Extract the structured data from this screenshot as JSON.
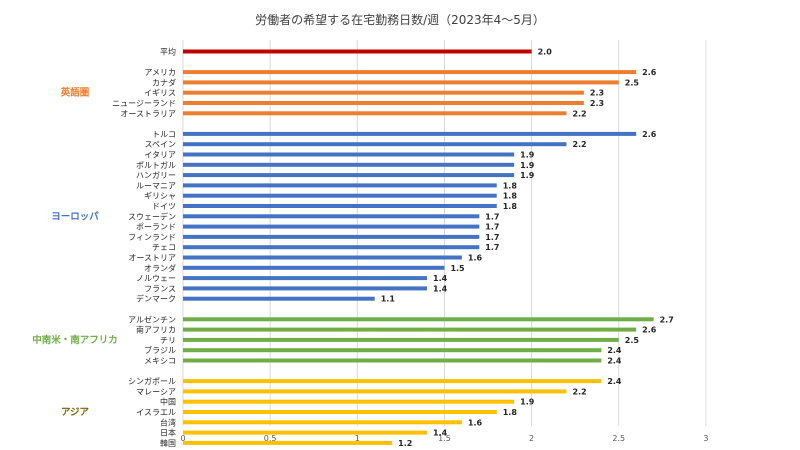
{
  "chart_data": {
    "type": "bar",
    "orientation": "horizontal",
    "title": "労働者の希望する在宅勤務日数/週（2023年4〜5月）",
    "xlim": [
      0,
      3
    ],
    "xticks": [
      "0",
      "0.5",
      "1",
      "1.5",
      "2",
      "2.5",
      "3"
    ],
    "grid": "vertical",
    "groups": [
      {
        "name": "",
        "color": "#C00000",
        "categories": [
          "平均"
        ],
        "values": [
          2.0
        ]
      },
      {
        "name": "英語圏",
        "color": "#ED7D31",
        "categories": [
          "アメリカ",
          "カナダ",
          "イギリス",
          "ニュージーランド",
          "オーストラリア"
        ],
        "values": [
          2.6,
          2.5,
          2.3,
          2.3,
          2.2
        ]
      },
      {
        "name": "ヨーロッパ",
        "color": "#4472C4",
        "categories": [
          "トルコ",
          "スペイン",
          "イタリア",
          "ポルトガル",
          "ハンガリー",
          "ルーマニア",
          "ギリシャ",
          "ドイツ",
          "スウェーデン",
          "ポーランド",
          "フィンランド",
          "チェコ",
          "オーストリア",
          "オランダ",
          "ノルウェー",
          "フランス",
          "デンマーク"
        ],
        "values": [
          2.6,
          2.2,
          1.9,
          1.9,
          1.9,
          1.8,
          1.8,
          1.8,
          1.7,
          1.7,
          1.7,
          1.7,
          1.6,
          1.5,
          1.4,
          1.4,
          1.1
        ]
      },
      {
        "name": "中南米・南アフリカ",
        "color": "#70AD47",
        "categories": [
          "アルゼンチン",
          "南アフリカ",
          "チリ",
          "ブラジル",
          "メキシコ"
        ],
        "values": [
          2.7,
          2.6,
          2.5,
          2.4,
          2.4
        ]
      },
      {
        "name": "アジア",
        "color": "#FFC000",
        "label_color": "#7F6000",
        "categories": [
          "シンガポール",
          "マレーシア",
          "中国",
          "イスラエル",
          "台湾",
          "日本",
          "韓国"
        ],
        "values": [
          2.4,
          2.2,
          1.9,
          1.8,
          1.6,
          1.4,
          1.2
        ]
      }
    ]
  }
}
